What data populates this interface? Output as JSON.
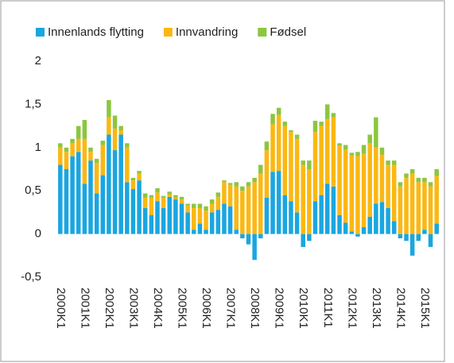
{
  "chart_data": {
    "type": "bar",
    "stacked": true,
    "categories": [
      "2000K1",
      null,
      null,
      null,
      "2001K1",
      null,
      null,
      null,
      "2002K1",
      null,
      null,
      null,
      "2003K1",
      null,
      null,
      null,
      "2004K1",
      null,
      null,
      null,
      "2005K1",
      null,
      null,
      null,
      "2006K1",
      null,
      null,
      null,
      "2007K1",
      null,
      null,
      null,
      "2008K1",
      null,
      null,
      null,
      "2009K1",
      null,
      null,
      null,
      "2010K1",
      null,
      null,
      null,
      "2011K1",
      null,
      null,
      null,
      "2012K1",
      null,
      null,
      null,
      "2013K1",
      null,
      null,
      null,
      "2014K1",
      null,
      null,
      null,
      "2015K1",
      null,
      null
    ],
    "series": [
      {
        "name": "Innenlands flytting",
        "color": "#1aa6e0",
        "values": [
          0.8,
          0.75,
          0.9,
          0.95,
          0.58,
          0.85,
          0.47,
          0.68,
          1.15,
          0.97,
          1.15,
          0.6,
          0.52,
          0.62,
          0.3,
          0.22,
          0.38,
          0.3,
          0.43,
          0.4,
          0.35,
          0.25,
          0.05,
          0.12,
          0.05,
          0.25,
          0.28,
          0.35,
          0.32,
          0.05,
          -0.05,
          -0.12,
          -0.3,
          -0.05,
          0.42,
          0.72,
          0.73,
          0.45,
          0.38,
          0.25,
          -0.15,
          -0.08,
          0.38,
          0.45,
          0.58,
          0.55,
          0.22,
          0.13,
          0.03,
          -0.03,
          0.08,
          0.2,
          0.35,
          0.37,
          0.3,
          0.15,
          -0.05,
          -0.08,
          -0.25,
          -0.08,
          0.05,
          -0.15,
          0.12
        ]
      },
      {
        "name": "Innvandring",
        "color": "#fbb813",
        "values": [
          0.2,
          0.2,
          0.15,
          0.15,
          0.52,
          0.1,
          0.35,
          0.35,
          0.2,
          0.25,
          0.05,
          0.4,
          0.1,
          0.08,
          0.12,
          0.2,
          0.1,
          0.12,
          0.03,
          0.02,
          0.05,
          0.08,
          0.25,
          0.18,
          0.22,
          0.1,
          0.15,
          0.25,
          0.25,
          0.5,
          0.5,
          0.55,
          0.6,
          0.7,
          0.55,
          0.55,
          0.65,
          0.8,
          0.8,
          0.85,
          0.8,
          0.75,
          0.8,
          0.8,
          0.75,
          0.8,
          0.8,
          0.85,
          0.88,
          0.9,
          0.85,
          0.85,
          0.65,
          0.55,
          0.5,
          0.65,
          0.55,
          0.65,
          0.7,
          0.6,
          0.55,
          0.55,
          0.55
        ]
      },
      {
        "name": "Fødsel",
        "color": "#8cc63f",
        "values": [
          0.05,
          0.05,
          0.05,
          0.15,
          0.22,
          0.05,
          0.05,
          0.05,
          0.2,
          0.15,
          0.05,
          0.05,
          0.03,
          0.03,
          0.05,
          0.03,
          0.05,
          0.02,
          0.03,
          0.03,
          0.03,
          0.02,
          0.05,
          0.05,
          0.05,
          0.05,
          0.05,
          0.02,
          0.02,
          0.05,
          0.05,
          0.05,
          0.05,
          0.1,
          0.1,
          0.12,
          0.08,
          0.05,
          0.02,
          0.05,
          0.05,
          0.1,
          0.13,
          0.05,
          0.17,
          0.05,
          0.03,
          0.05,
          0.03,
          0.05,
          0.1,
          0.1,
          0.35,
          0.08,
          0.05,
          0.05,
          0.05,
          0.05,
          0.05,
          0.05,
          0.05,
          0.05,
          0.08
        ]
      }
    ],
    "ylim": [
      -0.5,
      2
    ],
    "yticks": [
      {
        "value": -0.5,
        "label": "-0,5"
      },
      0,
      {
        "value": 0.5,
        "label": "0,5"
      },
      1,
      {
        "value": 1.5,
        "label": "1,5"
      },
      2
    ],
    "legend": "top"
  }
}
